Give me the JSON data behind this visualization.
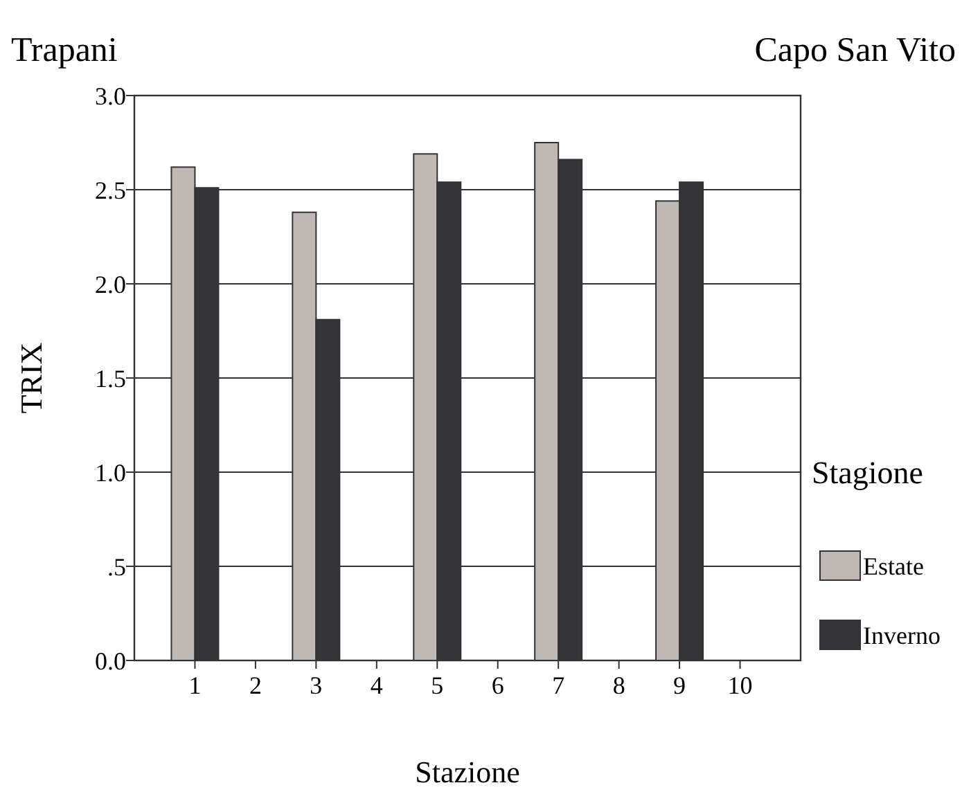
{
  "chart_data": {
    "type": "bar",
    "xlabel": "Stazione",
    "ylabel": "TRIX",
    "legend_title": "Stagione",
    "annotations": [
      "Trapani",
      "Capo San Vito"
    ],
    "categories": [
      "1",
      "2",
      "3",
      "4",
      "5",
      "6",
      "7",
      "8",
      "9",
      "10"
    ],
    "series": [
      {
        "name": "Estate",
        "color": "#c0b8b5",
        "values": [
          2.62,
          0,
          2.38,
          0,
          2.69,
          0,
          2.75,
          0,
          2.44,
          0
        ]
      },
      {
        "name": "Inverno",
        "color": "#353438",
        "values": [
          2.51,
          0,
          1.81,
          0,
          2.54,
          0,
          2.66,
          0,
          2.54,
          0
        ]
      }
    ],
    "ylim": [
      0,
      3
    ],
    "yticks": [
      {
        "value": 0,
        "label": "0.0"
      },
      {
        "value": 0.5,
        "label": ".5"
      },
      {
        "value": 1,
        "label": "1.0"
      },
      {
        "value": 1.5,
        "label": "1.5"
      },
      {
        "value": 2,
        "label": "2.0"
      },
      {
        "value": 2.5,
        "label": "2.5"
      },
      {
        "value": 3,
        "label": "3.0"
      }
    ],
    "grid": "y",
    "legend": "right"
  }
}
